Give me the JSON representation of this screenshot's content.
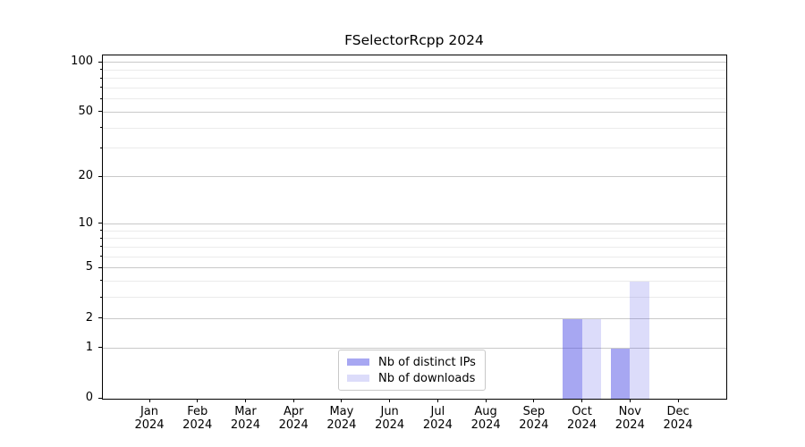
{
  "chart_data": {
    "type": "bar",
    "title": "FSelectorRcpp 2024",
    "x": {
      "categories": [
        "Jan",
        "Feb",
        "Mar",
        "Apr",
        "May",
        "Jun",
        "Jul",
        "Aug",
        "Sep",
        "Oct",
        "Nov",
        "Dec"
      ],
      "year": "2024"
    },
    "series": [
      {
        "name": "Nb of distinct IPs",
        "color": "rgba(80,80,230,0.5)",
        "values": [
          0,
          0,
          0,
          0,
          0,
          0,
          0,
          0,
          0,
          2,
          1,
          0
        ]
      },
      {
        "name": "Nb of downloads",
        "color": "rgba(80,80,230,0.2)",
        "values": [
          0,
          0,
          0,
          0,
          0,
          0,
          0,
          0,
          0,
          2,
          4,
          0
        ]
      }
    ],
    "yscale": "log1p",
    "ytick_labels": [
      "0",
      "1",
      "2",
      "5",
      "10",
      "20",
      "50",
      "100"
    ],
    "ytick_values": [
      0,
      1,
      2,
      5,
      10,
      20,
      50,
      100
    ],
    "yminor_values": [
      3,
      4,
      6,
      7,
      8,
      9,
      30,
      40,
      60,
      70,
      80,
      90
    ],
    "ylim": [
      0,
      112
    ],
    "grid": true,
    "legend_position": "lower-center"
  },
  "colors": {
    "grid_major": "#c9c9c9",
    "grid_minor": "#ebebeb",
    "spine": "#000000",
    "text": "#000000",
    "legend_border": "#c8c8c8"
  }
}
